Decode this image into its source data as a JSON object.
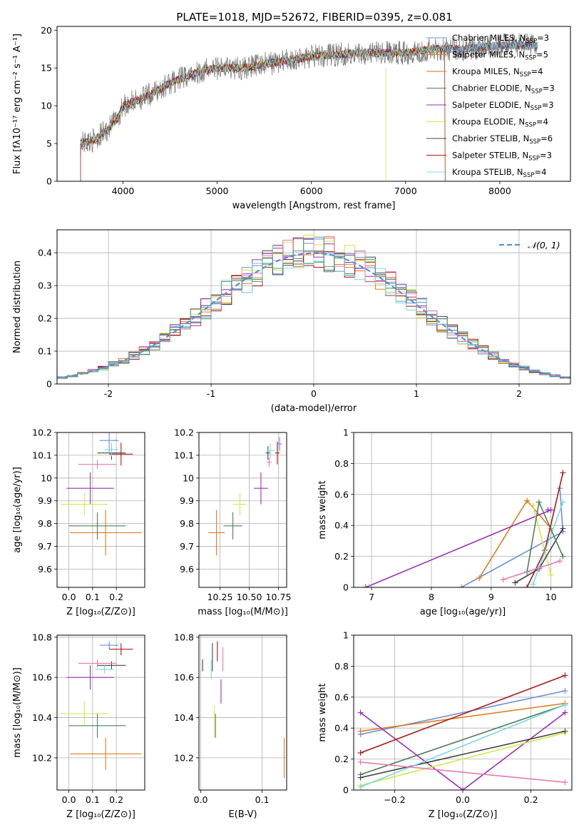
{
  "colors": {
    "Chabrier MILES": "#6a8fd8",
    "Salpeter MILES": "#e07b1a",
    "Kroupa MILES": "#d96f1e",
    "Chabrier ELODIE": "#4f7f5a",
    "Salpeter ELODIE": "#9a2fb5",
    "Kroupa ELODIE": "#d4e64a",
    "Chabrier STELIB": "#444444",
    "Salpeter STELIB": "#b01818",
    "Kroupa STELIB": "#7ad9e0",
    "pink": "#e87ab0",
    "grey": "#7f7f7f"
  },
  "chart_data": [
    {
      "id": "spectrum",
      "type": "line",
      "title": "PLATE=1018, MJD=52672, FIBERID=0395, z=0.081",
      "xlabel": "wavelength [Angstrom, rest frame]",
      "ylabel": "Flux [fλ10⁻¹⁷ erg cm⁻² s⁻¹ A⁻¹]",
      "xlim": [
        3300,
        8750
      ],
      "ylim": [
        0,
        20.5
      ],
      "xticks": [
        4000,
        5000,
        6000,
        7000,
        8000
      ],
      "yticks": [
        0,
        5,
        10,
        15,
        20
      ],
      "grid": false,
      "legend_position": "right",
      "legend": [
        {
          "label": "Chabrier MILES, N",
          "sub": "SSP",
          "tail": "=3",
          "color": "#6a8fd8"
        },
        {
          "label": "Salpeter MILES, N",
          "sub": "SSP",
          "tail": "=5",
          "color": "#e07b1a"
        },
        {
          "label": "Kroupa MILES, N",
          "sub": "SSP",
          "tail": "=4",
          "color": "#d96f1e"
        },
        {
          "label": "Chabrier ELODIE, N",
          "sub": "SSP",
          "tail": "=3",
          "color": "#4f7f5a"
        },
        {
          "label": "Salpeter ELODIE, N",
          "sub": "SSP",
          "tail": "=3",
          "color": "#9a2fb5"
        },
        {
          "label": "Kroupa ELODIE, N",
          "sub": "SSP",
          "tail": "=4",
          "color": "#d4e64a"
        },
        {
          "label": "Chabrier STELIB, N",
          "sub": "SSP",
          "tail": "=6",
          "color": "#444444"
        },
        {
          "label": "Salpeter STELIB, N",
          "sub": "SSP",
          "tail": "=3",
          "color": "#b01818"
        },
        {
          "label": "Kroupa STELIB, N",
          "sub": "SSP",
          "tail": "=4",
          "color": "#7ad9e0"
        }
      ],
      "continuum": [
        [
          3550,
          5
        ],
        [
          3700,
          5.5
        ],
        [
          3850,
          7
        ],
        [
          3950,
          8.5
        ],
        [
          4000,
          10
        ],
        [
          4200,
          11
        ],
        [
          4300,
          11.5
        ],
        [
          4500,
          13
        ],
        [
          4800,
          14.5
        ],
        [
          5000,
          15
        ],
        [
          5300,
          15
        ],
        [
          5500,
          15.5
        ],
        [
          6000,
          16.5
        ],
        [
          6500,
          17
        ],
        [
          7000,
          17
        ],
        [
          7300,
          17.5
        ],
        [
          7600,
          17.5
        ],
        [
          8000,
          18
        ],
        [
          8400,
          18
        ]
      ]
    },
    {
      "id": "residuals",
      "type": "histogram",
      "xlabel": "(data-model)/error",
      "ylabel": "Normed distribution",
      "xlim": [
        -2.5,
        2.5
      ],
      "ylim": [
        0,
        0.47
      ],
      "xticks": [
        -2,
        -1,
        0,
        1,
        2
      ],
      "yticks": [
        0.0,
        0.1,
        0.2,
        0.3,
        0.4
      ],
      "grid": true,
      "legend": [
        {
          "label": "𝒩(0, 1)",
          "style": "dashed",
          "color": "#5b8fd6"
        }
      ],
      "bin_width": 0.1
    },
    {
      "id": "age_vs_Z",
      "type": "scatter",
      "xlabel": "Z [log₁₀(Z/Z⊙)]",
      "ylabel": "age  [log₁₀(age/yr)]",
      "xlim": [
        -0.05,
        0.32
      ],
      "ylim": [
        9.52,
        10.2
      ],
      "xticks": [
        0.0,
        0.1,
        0.2
      ],
      "xticklabels": [
        "0.0",
        "0.1",
        "0.2"
      ],
      "yticks": [
        9.6,
        9.7,
        9.8,
        9.9,
        10.0,
        10.1,
        10.2
      ],
      "grid": true,
      "points": [
        {
          "x": 0.17,
          "y": 10.165,
          "xerr": 0.04,
          "yerr": 0.05,
          "color": "#6a8fd8"
        },
        {
          "x": 0.155,
          "y": 9.76,
          "xerr": 0.15,
          "yerr": 0.1,
          "color": "#e07b1a"
        },
        {
          "x": 0.12,
          "y": 9.79,
          "xerr": 0.12,
          "yerr": 0.06,
          "color": "#4f7f5a"
        },
        {
          "x": 0.09,
          "y": 9.955,
          "xerr": 0.1,
          "yerr": 0.07,
          "color": "#9a2fb5"
        },
        {
          "x": 0.065,
          "y": 9.885,
          "xerr": 0.1,
          "yerr": 0.05,
          "color": "#d4e64a"
        },
        {
          "x": 0.18,
          "y": 10.11,
          "xerr": 0.06,
          "yerr": 0.03,
          "color": "#444444"
        },
        {
          "x": 0.22,
          "y": 10.105,
          "xerr": 0.05,
          "yerr": 0.05,
          "color": "#b01818"
        },
        {
          "x": 0.18,
          "y": 10.125,
          "xerr": 0.03,
          "yerr": 0.03,
          "color": "#7ad9e0"
        },
        {
          "x": 0.12,
          "y": 10.06,
          "xerr": 0.08,
          "yerr": 0.02,
          "color": "#e87ab0"
        }
      ]
    },
    {
      "id": "age_vs_mass",
      "type": "scatter",
      "xlabel": "mass [log₁₀(M/M⊙)]",
      "xlim": [
        10.07,
        10.82
      ],
      "ylim": [
        9.52,
        10.2
      ],
      "xticks": [
        10.25,
        10.5,
        10.75
      ],
      "xticklabels": [
        "10.25",
        "10.50",
        "10.75"
      ],
      "yticks": [
        9.6,
        9.7,
        9.8,
        9.9,
        10.0,
        10.1,
        10.2
      ],
      "grid": true,
      "points": [
        {
          "x": 10.76,
          "y": 10.15,
          "xerr": 0.02,
          "yerr": 0.03,
          "color": "#6a8fd8"
        },
        {
          "x": 10.22,
          "y": 9.76,
          "xerr": 0.07,
          "yerr": 0.1,
          "color": "#e07b1a"
        },
        {
          "x": 10.36,
          "y": 9.79,
          "xerr": 0.08,
          "yerr": 0.06,
          "color": "#4f7f5a"
        },
        {
          "x": 10.6,
          "y": 9.955,
          "xerr": 0.06,
          "yerr": 0.07,
          "color": "#9a2fb5"
        },
        {
          "x": 10.42,
          "y": 9.885,
          "xerr": 0.06,
          "yerr": 0.05,
          "color": "#d4e64a"
        },
        {
          "x": 10.66,
          "y": 10.11,
          "xerr": 0.02,
          "yerr": 0.03,
          "color": "#444444"
        },
        {
          "x": 10.74,
          "y": 10.11,
          "xerr": 0.02,
          "yerr": 0.05,
          "color": "#b01818"
        },
        {
          "x": 10.68,
          "y": 10.12,
          "xerr": 0.03,
          "yerr": 0.03,
          "color": "#7ad9e0"
        },
        {
          "x": 10.67,
          "y": 10.07,
          "xerr": 0.02,
          "yerr": 0.02,
          "color": "#e87ab0"
        }
      ]
    },
    {
      "id": "weights_vs_age",
      "type": "line",
      "xlabel": "age  [log₁₀(age/yr)]",
      "ylabel": "mass weight",
      "xlim": [
        6.7,
        10.35
      ],
      "ylim": [
        0,
        1.0
      ],
      "xticks": [
        7,
        8,
        9,
        10
      ],
      "yticks": [
        0.0,
        0.2,
        0.4,
        0.6,
        0.8,
        1.0
      ],
      "grid": true,
      "series": [
        {
          "color": "#6a8fd8",
          "x": [
            8.5,
            10.2,
            10.15
          ],
          "y": [
            0.0,
            0.36,
            0.64
          ]
        },
        {
          "color": "#e07b1a",
          "x": [
            8.8,
            9.6,
            10.0
          ],
          "y": [
            0.06,
            0.56,
            0.38
          ]
        },
        {
          "color": "#9a2fb5",
          "x": [
            6.9,
            10.0,
            9.95
          ],
          "y": [
            0.0,
            0.5,
            0.5
          ]
        },
        {
          "color": "#d4e64a",
          "x": [
            9.7,
            10.0
          ],
          "y": [
            0.53,
            0.08
          ]
        },
        {
          "color": "#444444",
          "x": [
            9.4,
            9.8,
            10.2
          ],
          "y": [
            0.03,
            0.12,
            0.38
          ]
        },
        {
          "color": "#b01818",
          "x": [
            9.6,
            9.9,
            10.2
          ],
          "y": [
            0.0,
            0.24,
            0.74
          ]
        },
        {
          "color": "#7ad9e0",
          "x": [
            9.7,
            10.2
          ],
          "y": [
            0.02,
            0.55
          ]
        },
        {
          "color": "#4f7f5a",
          "x": [
            9.6,
            9.8,
            10.2
          ],
          "y": [
            0.1,
            0.55,
            0.2
          ]
        },
        {
          "color": "#e87ab0",
          "x": [
            9.2,
            10.15
          ],
          "y": [
            0.05,
            0.17
          ]
        }
      ]
    },
    {
      "id": "mass_vs_Z",
      "type": "scatter",
      "xlabel": "Z [log₁₀(Z/Z⊙)]",
      "ylabel": "mass [log₁₀(M/M⊙)]",
      "xlim": [
        -0.05,
        0.32
      ],
      "ylim": [
        10.04,
        10.81
      ],
      "xticks": [
        0.0,
        0.1,
        0.2
      ],
      "xticklabels": [
        "0.0",
        "0.1",
        "0.2"
      ],
      "yticks": [
        10.2,
        10.4,
        10.6,
        10.8
      ],
      "yticklabels": [
        "10.2",
        "10.4",
        "10.6",
        "10.8"
      ],
      "grid": true,
      "points": [
        {
          "x": 0.17,
          "y": 10.76,
          "xerr": 0.04,
          "yerr": 0.02,
          "color": "#6a8fd8"
        },
        {
          "x": 0.155,
          "y": 10.22,
          "xerr": 0.15,
          "yerr": 0.08,
          "color": "#e07b1a"
        },
        {
          "x": 0.12,
          "y": 10.36,
          "xerr": 0.12,
          "yerr": 0.06,
          "color": "#4f7f5a"
        },
        {
          "x": 0.09,
          "y": 10.6,
          "xerr": 0.1,
          "yerr": 0.06,
          "color": "#9a2fb5"
        },
        {
          "x": 0.065,
          "y": 10.42,
          "xerr": 0.1,
          "yerr": 0.06,
          "color": "#d4e64a"
        },
        {
          "x": 0.18,
          "y": 10.66,
          "xerr": 0.06,
          "yerr": 0.02,
          "color": "#444444"
        },
        {
          "x": 0.22,
          "y": 10.74,
          "xerr": 0.05,
          "yerr": 0.03,
          "color": "#b01818"
        },
        {
          "x": 0.15,
          "y": 10.64,
          "xerr": 0.04,
          "yerr": 0.02,
          "color": "#7ad9e0"
        },
        {
          "x": 0.12,
          "y": 10.67,
          "xerr": 0.08,
          "yerr": 0.02,
          "color": "#e87ab0"
        }
      ]
    },
    {
      "id": "mass_vs_ebv",
      "type": "scatter",
      "xlabel": "E(B-V)",
      "xlim": [
        -0.003,
        0.14
      ],
      "ylim": [
        10.04,
        10.81
      ],
      "xticks": [
        0.0,
        0.1
      ],
      "xticklabels": [
        "0.0",
        "0.1"
      ],
      "yticks": [
        10.2,
        10.4,
        10.6,
        10.8
      ],
      "yticklabels": [
        "10.2",
        "10.4",
        "10.6",
        "10.8"
      ],
      "grid": true,
      "points": [
        {
          "x": 0.136,
          "y": 10.2,
          "xerr": 0.0,
          "yerr": 0.1,
          "color": "#e07b1a"
        },
        {
          "x": 0.024,
          "y": 10.36,
          "xerr": 0.0,
          "yerr": 0.06,
          "color": "#4f7f5a"
        },
        {
          "x": 0.022,
          "y": 10.38,
          "xerr": 0.0,
          "yerr": 0.08,
          "color": "#d4e64a"
        },
        {
          "x": 0.033,
          "y": 10.53,
          "xerr": 0.0,
          "yerr": 0.06,
          "color": "#9a2fb5"
        },
        {
          "x": 0.003,
          "y": 10.66,
          "xerr": 0.0,
          "yerr": 0.03,
          "color": "#444444"
        },
        {
          "x": 0.027,
          "y": 10.73,
          "xerr": 0.0,
          "yerr": 0.05,
          "color": "#b01818"
        },
        {
          "x": 0.017,
          "y": 10.64,
          "xerr": 0.0,
          "yerr": 0.05,
          "color": "#7ad9e0"
        },
        {
          "x": 0.019,
          "y": 10.7,
          "xerr": 0.0,
          "yerr": 0.07,
          "color": "#444444"
        },
        {
          "x": 0.036,
          "y": 10.69,
          "xerr": 0.0,
          "yerr": 0.06,
          "color": "#e87ab0"
        }
      ]
    },
    {
      "id": "weights_vs_Z",
      "type": "line",
      "xlabel": "Z [log₁₀(Z/Z⊙)]",
      "ylabel": "mass weight",
      "xlim": [
        -0.32,
        0.32
      ],
      "ylim": [
        0,
        1.0
      ],
      "xticks": [
        -0.2,
        0.0,
        0.2
      ],
      "xticklabels": [
        "−0.2",
        "0.0",
        "0.2"
      ],
      "yticks": [
        0.0,
        0.2,
        0.4,
        0.6,
        0.8,
        1.0
      ],
      "grid": true,
      "series": [
        {
          "color": "#6a8fd8",
          "x": [
            -0.3,
            0.3
          ],
          "y": [
            0.36,
            0.64
          ]
        },
        {
          "color": "#e07b1a",
          "x": [
            -0.3,
            0.3
          ],
          "y": [
            0.38,
            0.56
          ]
        },
        {
          "color": "#4f7f5a",
          "x": [
            -0.3,
            0.3
          ],
          "y": [
            0.1,
            0.55
          ]
        },
        {
          "color": "#9a2fb5",
          "x": [
            -0.3,
            0.0,
            0.3
          ],
          "y": [
            0.5,
            0.0,
            0.5
          ]
        },
        {
          "color": "#d4e64a",
          "x": [
            -0.3,
            0.3
          ],
          "y": [
            0.03,
            0.37
          ]
        },
        {
          "color": "#444444",
          "x": [
            -0.3,
            0.3
          ],
          "y": [
            0.08,
            0.38
          ]
        },
        {
          "color": "#b01818",
          "x": [
            -0.3,
            0.3
          ],
          "y": [
            0.24,
            0.74
          ]
        },
        {
          "color": "#7ad9e0",
          "x": [
            -0.3,
            0.3
          ],
          "y": [
            0.02,
            0.55
          ]
        },
        {
          "color": "#e87ab0",
          "x": [
            -0.3,
            0.3
          ],
          "y": [
            0.18,
            0.05
          ]
        }
      ]
    }
  ]
}
